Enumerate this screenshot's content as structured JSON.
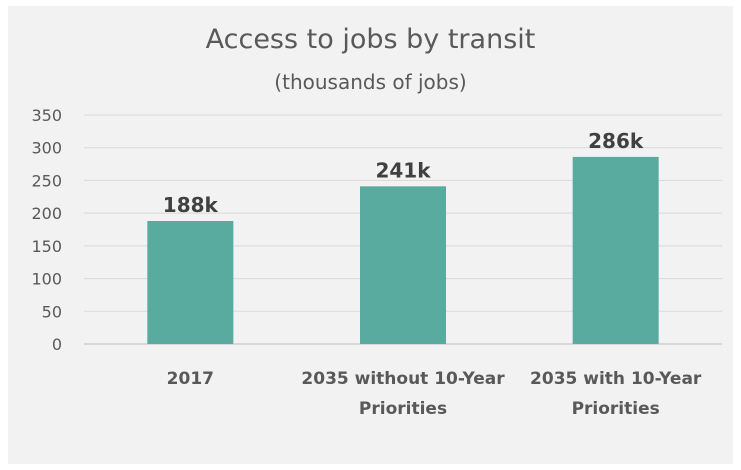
{
  "chart_data": {
    "type": "bar",
    "title": "Access to jobs by transit",
    "subtitle": "(thousands of jobs)",
    "categories": [
      [
        "2017"
      ],
      [
        "2035 without 10-Year",
        "Priorities"
      ],
      [
        "2035 with 10-Year",
        "Priorities"
      ]
    ],
    "values": [
      188,
      241,
      286
    ],
    "data_labels": [
      "188k",
      "241k",
      "286k"
    ],
    "ylim": [
      0,
      350
    ],
    "yticks": [
      0,
      50,
      100,
      150,
      200,
      250,
      300,
      350
    ],
    "grid": true,
    "bar_color": "#5aab9f",
    "background_color": "#f2f2f2"
  }
}
